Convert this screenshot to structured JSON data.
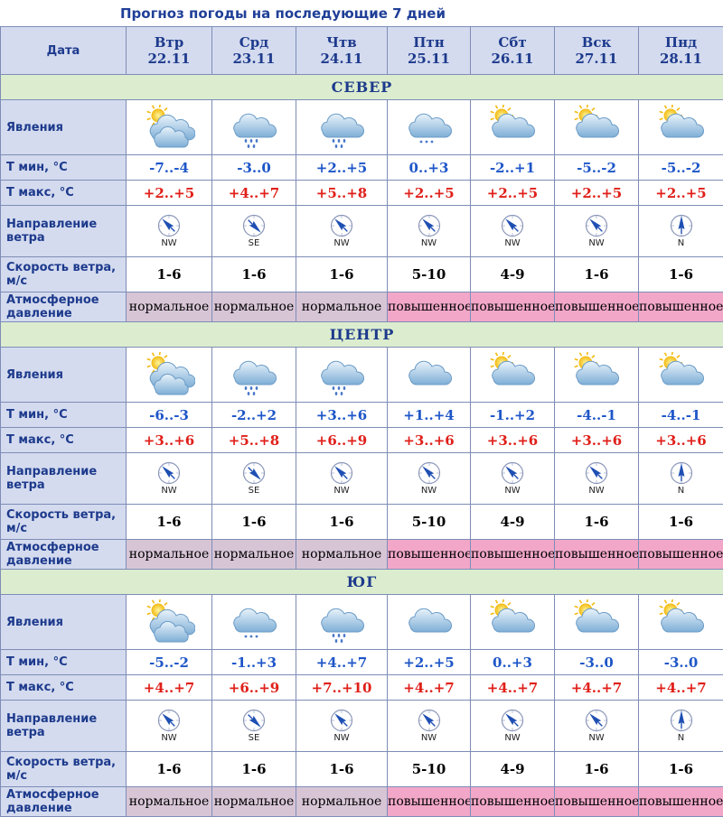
{
  "title": "Прогноз погоды на последующие 7 дней",
  "labels": {
    "date": "Дата",
    "phenomena": "Явления",
    "tmin": "Т мин, °C",
    "tmax": "Т макс, °C",
    "wind_dir": "Направление ветра",
    "wind_speed": "Скорость ветра, м/с",
    "pressure": "Атмосферное давление"
  },
  "days": [
    {
      "dow": "Втр",
      "date": "22.11"
    },
    {
      "dow": "Срд",
      "date": "23.11"
    },
    {
      "dow": "Чтв",
      "date": "24.11"
    },
    {
      "dow": "Птн",
      "date": "25.11"
    },
    {
      "dow": "Сбт",
      "date": "26.11"
    },
    {
      "dow": "Вск",
      "date": "27.11"
    },
    {
      "dow": "Пнд",
      "date": "28.11"
    }
  ],
  "regions": [
    {
      "name": "СЕВЕР",
      "icons": [
        "sun-cloudy-icon",
        "cloud-rain-icon",
        "cloud-rain-icon",
        "cloud-snow-icon",
        "sun-cloud-icon",
        "sun-cloud-icon",
        "sun-cloud-icon"
      ],
      "tmin": [
        "-7..-4",
        "-3..0",
        "+2..+5",
        "0..+3",
        "-2..+1",
        "-5..-2",
        "-5..-2"
      ],
      "tmax": [
        "+2..+5",
        "+4..+7",
        "+5..+8",
        "+2..+5",
        "+2..+5",
        "+2..+5",
        "+2..+5"
      ],
      "wind_dir": [
        "NW",
        "SE",
        "NW",
        "NW",
        "NW",
        "NW",
        "N"
      ],
      "wind_speed": [
        "1-6",
        "1-6",
        "1-6",
        "5-10",
        "4-9",
        "1-6",
        "1-6"
      ],
      "pressure": [
        "нормальное",
        "нормальное",
        "нормальное",
        "повышенное",
        "повышенное",
        "повышенное",
        "повышенное"
      ],
      "pressure_type": [
        "normal",
        "normal",
        "normal",
        "high",
        "high",
        "high",
        "high"
      ]
    },
    {
      "name": "ЦЕНТР",
      "icons": [
        "sun-cloudy-icon",
        "cloud-rain-icon",
        "cloud-rain-icon",
        "cloud-icon",
        "sun-cloud-icon",
        "sun-cloud-icon",
        "sun-cloud-icon"
      ],
      "tmin": [
        "-6..-3",
        "-2..+2",
        "+3..+6",
        "+1..+4",
        "-1..+2",
        "-4..-1",
        "-4..-1"
      ],
      "tmax": [
        "+3..+6",
        "+5..+8",
        "+6..+9",
        "+3..+6",
        "+3..+6",
        "+3..+6",
        "+3..+6"
      ],
      "wind_dir": [
        "NW",
        "SE",
        "NW",
        "NW",
        "NW",
        "NW",
        "N"
      ],
      "wind_speed": [
        "1-6",
        "1-6",
        "1-6",
        "5-10",
        "4-9",
        "1-6",
        "1-6"
      ],
      "pressure": [
        "нормальное",
        "нормальное",
        "нормальное",
        "повышенное",
        "повышенное",
        "повышенное",
        "повышенное"
      ],
      "pressure_type": [
        "normal",
        "normal",
        "normal",
        "high",
        "high",
        "high",
        "high"
      ]
    },
    {
      "name": "ЮГ",
      "icons": [
        "sun-cloudy-icon",
        "cloud-snow-icon",
        "cloud-rain-icon",
        "cloud-icon",
        "sun-cloud-icon",
        "sun-cloud-icon",
        "sun-cloud-icon"
      ],
      "tmin": [
        "-5..-2",
        "-1..+3",
        "+4..+7",
        "+2..+5",
        "0..+3",
        "-3..0",
        "-3..0"
      ],
      "tmax": [
        "+4..+7",
        "+6..+9",
        "+7..+10",
        "+4..+7",
        "+4..+7",
        "+4..+7",
        "+4..+7"
      ],
      "wind_dir": [
        "NW",
        "SE",
        "NW",
        "NW",
        "NW",
        "NW",
        "N"
      ],
      "wind_speed": [
        "1-6",
        "1-6",
        "1-6",
        "5-10",
        "4-9",
        "1-6",
        "1-6"
      ],
      "pressure": [
        "нормальное",
        "нормальное",
        "нормальное",
        "повышенное",
        "повышенное",
        "повышенное",
        "повышенное"
      ],
      "pressure_type": [
        "normal",
        "normal",
        "normal",
        "high",
        "high",
        "high",
        "high"
      ]
    }
  ]
}
